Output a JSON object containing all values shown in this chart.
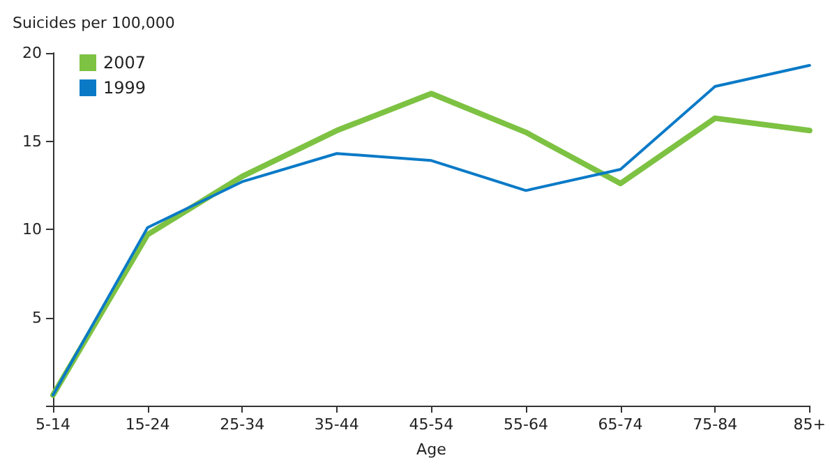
{
  "chart_data": {
    "type": "line",
    "ylabel": "Suicides per 100,000",
    "xlabel": "Age",
    "categories": [
      "5-14",
      "15-24",
      "25-34",
      "35-44",
      "45-54",
      "55-64",
      "65-74",
      "75-84",
      "85+"
    ],
    "series": [
      {
        "name": "2007",
        "color": "#7dc242",
        "values": [
          0.6,
          9.7,
          13.0,
          15.6,
          17.7,
          15.5,
          12.6,
          16.3,
          15.6
        ]
      },
      {
        "name": "1999",
        "color": "#0a7ac7",
        "values": [
          0.6,
          10.1,
          12.7,
          14.3,
          13.9,
          12.2,
          13.4,
          18.1,
          19.3
        ]
      }
    ],
    "ylim": [
      0,
      20
    ],
    "yticks": [
      {
        "value": 0,
        "label": null
      },
      5,
      10,
      15,
      20
    ],
    "grid": false,
    "legend": "top left",
    "marker": "none",
    "line_style": "solid"
  }
}
